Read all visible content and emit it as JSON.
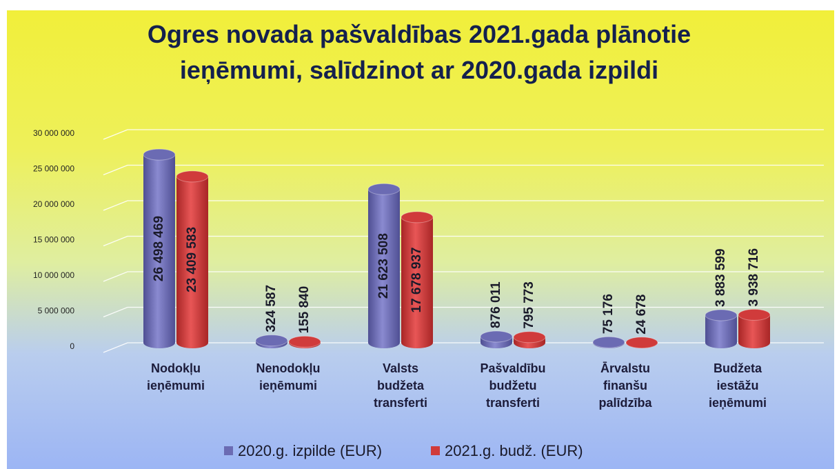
{
  "chart_data": {
    "type": "bar",
    "title": "Ogres novada pašvaldības 2021.gada plānotie ieņēmumi, salīdzinot ar 2020.gada izpildi",
    "categories": [
      "Nodokļu ieņēmumi",
      "Nenodokļu ieņēmumi",
      "Valsts budžeta transferti",
      "Pašvaldību budžetu transferti",
      "Ārvalstu finanšu palīdzība",
      "Budžeta iestāžu ieņēmumi"
    ],
    "series": [
      {
        "name": "2020.g. izpilde (EUR)",
        "color": "#6b6bb3",
        "values": [
          26498469,
          324587,
          21623508,
          876011,
          75176,
          3883599
        ],
        "value_labels": [
          "26 498 469",
          "324 587",
          "21 623 508",
          "876 011",
          "75 176",
          "3 883 599"
        ]
      },
      {
        "name": "2021.g. budž. (EUR)",
        "color": "#d03b3b",
        "values": [
          23409583,
          155840,
          17678937,
          795773,
          24678,
          3938716
        ],
        "value_labels": [
          "23 409 583",
          "155 840",
          "17 678 937",
          "795 773",
          "24 678",
          "3 938 716"
        ]
      }
    ],
    "ylim": [
      0,
      30000000
    ],
    "yticks": [
      {
        "value": 0,
        "label": "0"
      },
      {
        "value": 5000000,
        "label": "5 000 000"
      },
      {
        "value": 10000000,
        "label": "10 000 000"
      },
      {
        "value": 15000000,
        "label": "15 000 000"
      },
      {
        "value": 20000000,
        "label": "20 000 000"
      },
      {
        "value": 25000000,
        "label": "25 000 000"
      },
      {
        "value": 30000000,
        "label": "30 000 000"
      }
    ],
    "grid": true,
    "legend": "bottom"
  }
}
